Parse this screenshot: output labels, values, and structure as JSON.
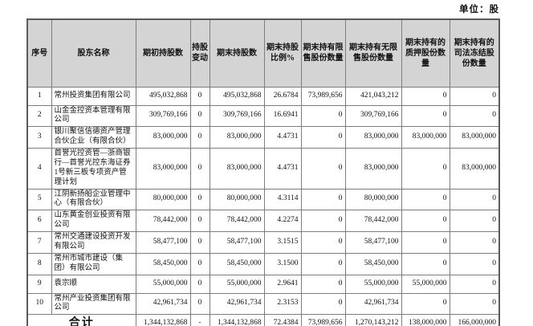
{
  "unit_label": "单位：股",
  "table": {
    "headers": [
      "序号",
      "股东名称",
      "期初持股数",
      "持股变动",
      "期末持股数",
      "期末持股比例%",
      "期末持有限售股份数量",
      "期末持有无限售股份数量",
      "期末持有的质押股份数量",
      "期末持有的司法冻结股份数量"
    ],
    "rows": [
      {
        "no": "1",
        "name": "常州投资集团有限公司",
        "begin": "495,032,868",
        "change": "0",
        "end": "495,032,868",
        "pct": "26.6784",
        "restricted": "73,989,656",
        "unrestricted": "421,043,212",
        "pledged": "0",
        "frozen": "0"
      },
      {
        "no": "2",
        "name": "山金金控资本管理有限公司",
        "begin": "309,769,166",
        "change": "0",
        "end": "309,769,166",
        "pct": "16.6941",
        "restricted": "0",
        "unrestricted": "309,769,166",
        "pledged": "0",
        "frozen": "0"
      },
      {
        "no": "3",
        "name": "银川聚信信德资产管理合伙企业（有限合伙）",
        "begin": "83,000,000",
        "change": "0",
        "end": "83,000,000",
        "pct": "4.4731",
        "restricted": "0",
        "unrestricted": "83,000,000",
        "pledged": "83,000,000",
        "frozen": "83,000,000"
      },
      {
        "no": "4",
        "name": "首誉光控资管—浙商银行—首誉光控东海证券1号新三板专项资产管理计划",
        "begin": "83,000,000",
        "change": "0",
        "end": "83,000,000",
        "pct": "4.4731",
        "restricted": "0",
        "unrestricted": "83,000,000",
        "pledged": "0",
        "frozen": "83,000,000"
      },
      {
        "no": "5",
        "name": "江阴新扬船企业管理中心（有限合伙）",
        "begin": "80,000,000",
        "change": "0",
        "end": "80,000,000",
        "pct": "4.3114",
        "restricted": "0",
        "unrestricted": "80,000,000",
        "pledged": "0",
        "frozen": "0"
      },
      {
        "no": "6",
        "name": "山东黄金创业投资有限公司",
        "begin": "78,442,000",
        "change": "0",
        "end": "78,442,000",
        "pct": "4.2274",
        "restricted": "0",
        "unrestricted": "78,442,000",
        "pledged": "0",
        "frozen": "0"
      },
      {
        "no": "7",
        "name": "常州交通建设投资开发有限公司",
        "begin": "58,477,100",
        "change": "0",
        "end": "58,477,100",
        "pct": "3.1515",
        "restricted": "0",
        "unrestricted": "58,477,100",
        "pledged": "0",
        "frozen": "0"
      },
      {
        "no": "8",
        "name": "常州市城市建设（集团）有限公司",
        "begin": "58,450,000",
        "change": "0",
        "end": "58,450,000",
        "pct": "3.1500",
        "restricted": "0",
        "unrestricted": "58,450,000",
        "pledged": "0",
        "frozen": "0"
      },
      {
        "no": "9",
        "name": "袁宗顺",
        "begin": "55,000,000",
        "change": "0",
        "end": "55,000,000",
        "pct": "2.9641",
        "restricted": "0",
        "unrestricted": "55,000,000",
        "pledged": "55,000,000",
        "frozen": "0"
      },
      {
        "no": "10",
        "name": "常州产业投资集团有限公司",
        "begin": "42,961,734",
        "change": "0",
        "end": "42,961,734",
        "pct": "2.3153",
        "restricted": "0",
        "unrestricted": "42,961,734",
        "pledged": "0",
        "frozen": "0"
      }
    ],
    "total": {
      "label": "合计",
      "begin": "1,344,132,868",
      "change": "-",
      "end": "1,344,132,868",
      "pct": "72.4384",
      "restricted": "73,989,656",
      "unrestricted": "1,270,143,212",
      "pledged": "138,000,000",
      "frozen": "166,000,000"
    }
  }
}
